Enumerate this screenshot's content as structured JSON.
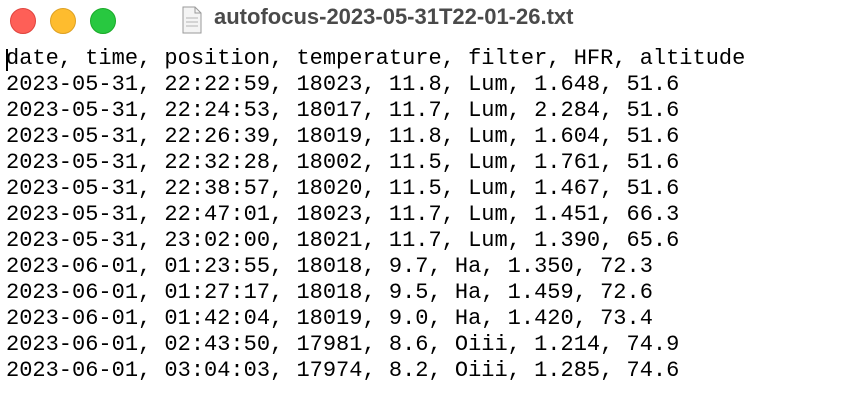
{
  "window": {
    "title": "autofocus-2023-05-31T22-01-26.txt"
  },
  "document": {
    "lines": [
      "date, time, position, temperature, filter, HFR, altitude",
      "2023-05-31, 22:22:59, 18023, 11.8, Lum, 1.648, 51.6",
      "2023-05-31, 22:24:53, 18017, 11.7, Lum, 2.284, 51.6",
      "2023-05-31, 22:26:39, 18019, 11.8, Lum, 1.604, 51.6",
      "2023-05-31, 22:32:28, 18002, 11.5, Lum, 1.761, 51.6",
      "2023-05-31, 22:38:57, 18020, 11.5, Lum, 1.467, 51.6",
      "2023-05-31, 22:47:01, 18023, 11.7, Lum, 1.451, 66.3",
      "2023-05-31, 23:02:00, 18021, 11.7, Lum, 1.390, 65.6",
      "2023-06-01, 01:23:55, 18018, 9.7, Ha, 1.350, 72.3",
      "2023-06-01, 01:27:17, 18018, 9.5, Ha, 1.459, 72.6",
      "2023-06-01, 01:42:04, 18019, 9.0, Ha, 1.420, 73.4",
      "2023-06-01, 02:43:50, 17981, 8.6, Oiii, 1.214, 74.9",
      "2023-06-01, 03:04:03, 17974, 8.2, Oiii, 1.285, 74.6"
    ]
  }
}
